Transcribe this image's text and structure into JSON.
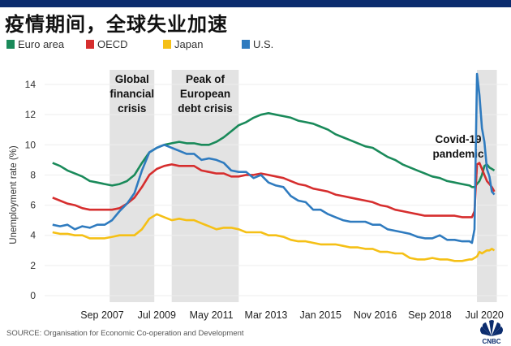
{
  "title": "疫情期间，全球失业加速",
  "source": "SOURCE: Organisation for Economic Co-operation and Development",
  "logo_text": "CNBC",
  "chart_data": {
    "type": "line",
    "title": "疫情期间，全球失业加速",
    "ylabel": "Unemployment rate (%)",
    "xlabel": "",
    "ylim": [
      0,
      14
    ],
    "yticks": [
      "0",
      "2",
      "4",
      "6",
      "8",
      "10",
      "12",
      "14"
    ],
    "xticks": [
      "Sep 2007",
      "Jul 2009",
      "May 2011",
      "Mar 2013",
      "Jan 2015",
      "Nov 2016",
      "Sep 2018",
      "Jul 2020"
    ],
    "grid": true,
    "legend_position": "top-left",
    "x": [
      "2006-01",
      "2006-04",
      "2006-07",
      "2006-10",
      "2007-01",
      "2007-04",
      "2007-07",
      "2007-10",
      "2008-01",
      "2008-04",
      "2008-07",
      "2008-10",
      "2009-01",
      "2009-04",
      "2009-07",
      "2009-10",
      "2010-01",
      "2010-04",
      "2010-07",
      "2010-10",
      "2011-01",
      "2011-04",
      "2011-07",
      "2011-10",
      "2012-01",
      "2012-04",
      "2012-07",
      "2012-10",
      "2013-01",
      "2013-04",
      "2013-07",
      "2013-10",
      "2014-01",
      "2014-04",
      "2014-07",
      "2014-10",
      "2015-01",
      "2015-04",
      "2015-07",
      "2015-10",
      "2016-01",
      "2016-04",
      "2016-07",
      "2016-10",
      "2017-01",
      "2017-04",
      "2017-07",
      "2017-10",
      "2018-01",
      "2018-04",
      "2018-07",
      "2018-10",
      "2019-01",
      "2019-04",
      "2019-07",
      "2019-10",
      "2020-01",
      "2020-02",
      "2020-03",
      "2020-04",
      "2020-05",
      "2020-06",
      "2020-07",
      "2020-08",
      "2020-09",
      "2020-10",
      "2020-11"
    ],
    "series": [
      {
        "name": "Euro area",
        "color": "#1a8a5a",
        "values": [
          8.8,
          8.6,
          8.3,
          8.1,
          7.9,
          7.6,
          7.5,
          7.4,
          7.3,
          7.4,
          7.6,
          8.0,
          8.8,
          9.5,
          9.8,
          10.0,
          10.1,
          10.2,
          10.1,
          10.1,
          10.0,
          10.0,
          10.2,
          10.5,
          10.9,
          11.3,
          11.5,
          11.8,
          12.0,
          12.1,
          12.0,
          11.9,
          11.8,
          11.6,
          11.5,
          11.4,
          11.2,
          11.0,
          10.7,
          10.5,
          10.3,
          10.1,
          9.9,
          9.8,
          9.5,
          9.2,
          9.0,
          8.7,
          8.5,
          8.3,
          8.1,
          7.9,
          7.8,
          7.6,
          7.5,
          7.4,
          7.3,
          7.2,
          7.2,
          7.4,
          7.6,
          8.0,
          8.6,
          8.7,
          8.5,
          8.4,
          8.3
        ]
      },
      {
        "name": "OECD",
        "color": "#d62e2e",
        "values": [
          6.5,
          6.3,
          6.1,
          6.0,
          5.8,
          5.7,
          5.7,
          5.7,
          5.7,
          5.8,
          6.1,
          6.5,
          7.2,
          8.0,
          8.4,
          8.6,
          8.7,
          8.6,
          8.6,
          8.6,
          8.3,
          8.2,
          8.1,
          8.1,
          7.9,
          7.9,
          8.0,
          8.0,
          8.1,
          8.0,
          7.9,
          7.8,
          7.6,
          7.4,
          7.3,
          7.1,
          7.0,
          6.9,
          6.7,
          6.6,
          6.5,
          6.4,
          6.3,
          6.2,
          6.0,
          5.9,
          5.7,
          5.6,
          5.5,
          5.4,
          5.3,
          5.3,
          5.3,
          5.3,
          5.3,
          5.2,
          5.2,
          5.2,
          5.6,
          8.7,
          8.8,
          8.4,
          8.0,
          7.6,
          7.4,
          7.2,
          6.9
        ]
      },
      {
        "name": "Japan",
        "color": "#f5c016",
        "values": [
          4.2,
          4.1,
          4.1,
          4.0,
          4.0,
          3.8,
          3.8,
          3.8,
          3.9,
          4.0,
          4.0,
          4.0,
          4.4,
          5.1,
          5.4,
          5.2,
          5.0,
          5.1,
          5.0,
          5.0,
          4.8,
          4.6,
          4.4,
          4.5,
          4.5,
          4.4,
          4.2,
          4.2,
          4.2,
          4.0,
          4.0,
          3.9,
          3.7,
          3.6,
          3.6,
          3.5,
          3.4,
          3.4,
          3.4,
          3.3,
          3.2,
          3.2,
          3.1,
          3.1,
          2.9,
          2.9,
          2.8,
          2.8,
          2.5,
          2.4,
          2.4,
          2.5,
          2.4,
          2.4,
          2.3,
          2.3,
          2.4,
          2.4,
          2.5,
          2.6,
          2.9,
          2.8,
          2.9,
          3.0,
          3.0,
          3.1,
          3.0
        ]
      },
      {
        "name": "U.S.",
        "color": "#2f7bbf",
        "values": [
          4.7,
          4.6,
          4.7,
          4.4,
          4.6,
          4.5,
          4.7,
          4.7,
          5.0,
          5.6,
          6.1,
          6.8,
          8.3,
          9.5,
          9.8,
          10.0,
          9.8,
          9.6,
          9.4,
          9.4,
          9.0,
          9.1,
          9.0,
          8.8,
          8.3,
          8.2,
          8.2,
          7.8,
          8.0,
          7.5,
          7.3,
          7.2,
          6.6,
          6.3,
          6.2,
          5.7,
          5.7,
          5.4,
          5.2,
          5.0,
          4.9,
          4.9,
          4.9,
          4.7,
          4.7,
          4.4,
          4.3,
          4.2,
          4.1,
          3.9,
          3.8,
          3.8,
          4.0,
          3.7,
          3.7,
          3.6,
          3.6,
          3.5,
          4.4,
          14.7,
          13.3,
          11.1,
          10.2,
          8.4,
          7.9,
          6.9,
          6.7
        ]
      }
    ],
    "annotations": [
      {
        "label": "Global financial crisis",
        "lines": [
          "Global",
          "financial",
          "crisis"
        ],
        "start": "2007-12",
        "end": "2009-06"
      },
      {
        "label": "Peak of European debt crisis",
        "lines": [
          "Peak of",
          "European",
          "debt crisis"
        ],
        "start": "2010-01",
        "end": "2012-04"
      },
      {
        "label": "Covid-19 pandemic",
        "lines": [
          "Covid-19",
          "pandemic"
        ],
        "start": "2020-04",
        "end": "2020-12"
      }
    ],
    "band_color": "#e3e3e3"
  }
}
